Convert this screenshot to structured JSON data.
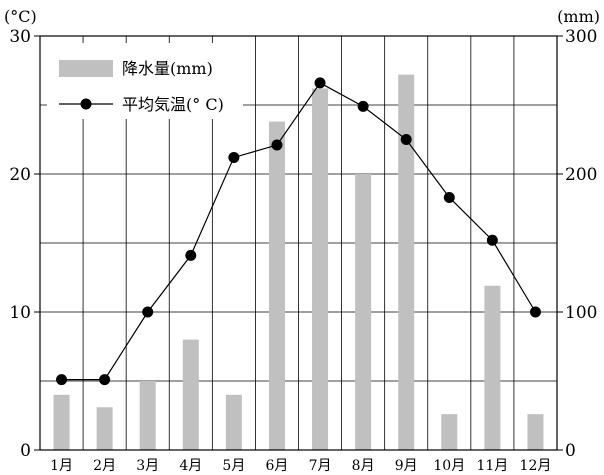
{
  "chart_data": {
    "type": "bar+line",
    "categories": [
      "1月",
      "2月",
      "3月",
      "4月",
      "5月",
      "6月",
      "7月",
      "8月",
      "9月",
      "10月",
      "11月",
      "12月"
    ],
    "series": [
      {
        "name": "降水量(mm)",
        "type": "bar",
        "axis": "right",
        "color": "#c0c0c0",
        "values": [
          40,
          31,
          50,
          80,
          40,
          238,
          262,
          200,
          272,
          26,
          119,
          26
        ]
      },
      {
        "name": "平均気温(° C)",
        "type": "line",
        "axis": "left",
        "color": "#000000",
        "values": [
          5.1,
          5.1,
          10.0,
          14.1,
          21.2,
          22.1,
          26.6,
          24.9,
          22.5,
          18.3,
          15.2,
          10.0
        ]
      }
    ],
    "y_left": {
      "unit": "(°C)",
      "ylim": [
        0,
        30
      ],
      "ticks": [
        0,
        10,
        20,
        30
      ]
    },
    "y_right": {
      "unit": "(mm)",
      "ylim": [
        0,
        300
      ],
      "ticks": [
        0,
        100,
        200,
        300
      ]
    },
    "grid": true,
    "legend_position": "top-left"
  }
}
